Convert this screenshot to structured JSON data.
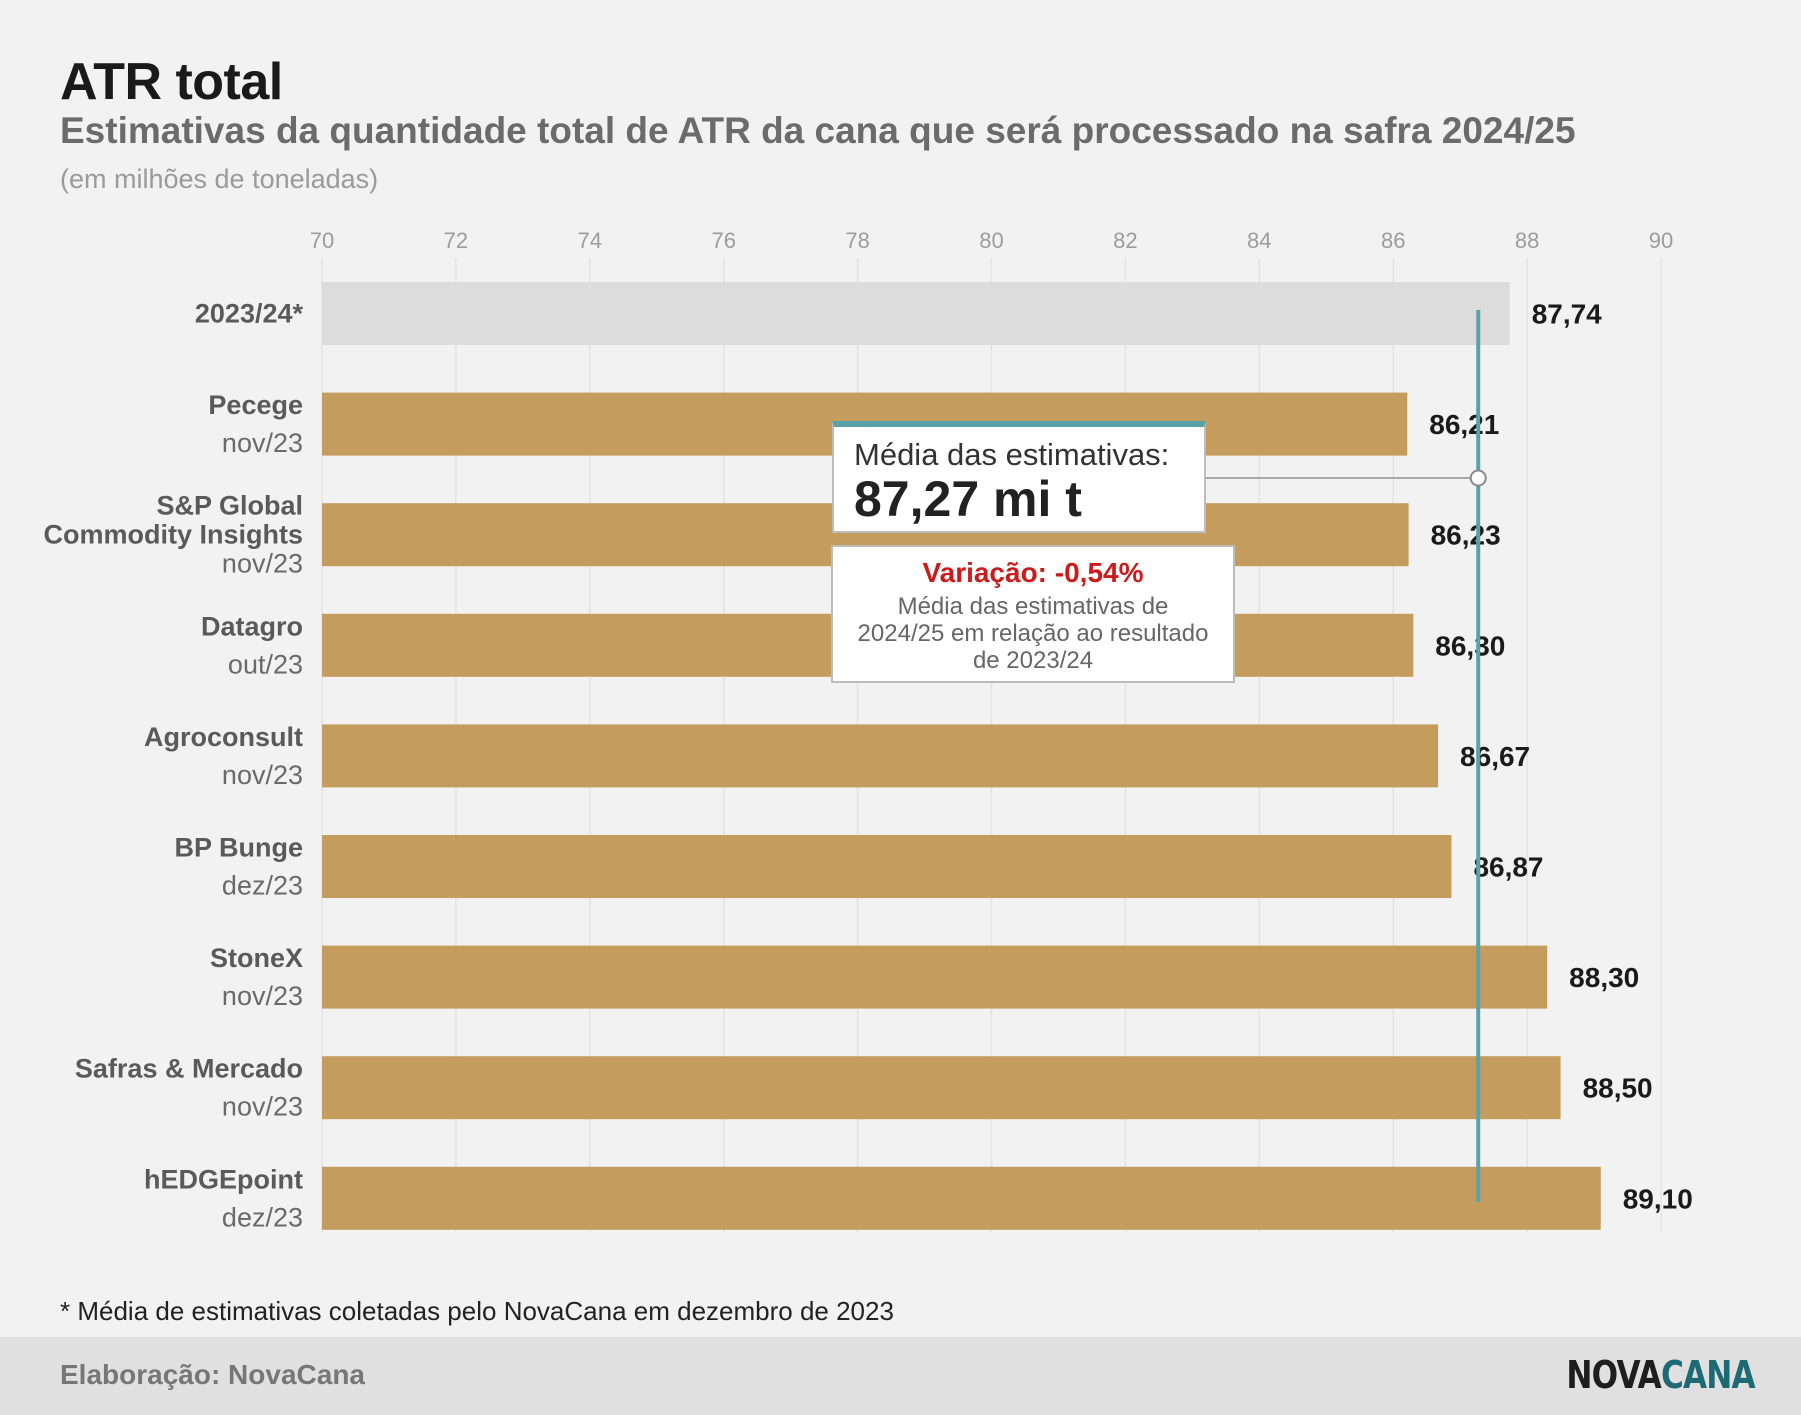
{
  "header": {
    "title": "ATR total",
    "subtitle": "Estimativas da quantidade total de ATR da cana que será processado na safra 2024/25",
    "unit_note": "(em milhões de toneladas)"
  },
  "annotation": {
    "average_label": "Média das estimativas:",
    "average_value_text": "87,27 mi t",
    "average_value": 87.27,
    "variation_title": "Variação: -0,54%",
    "variation_desc_lines": [
      "Média das estimativas de",
      "2024/25 em relação ao resultado",
      "de 2023/24"
    ]
  },
  "footnote": "* Média de estimativas coletadas pelo NovaCana em dezembro de 2023",
  "footer": {
    "credit": "Elaboração: NovaCana",
    "logo_part1": "NOVA",
    "logo_part2": "CANA"
  },
  "colors": {
    "bar": "#c49c5e",
    "reference_bar": "#dcdcdc",
    "average_line": "#5aa2aa",
    "variation": "#cc1b1b"
  },
  "chart_data": {
    "type": "bar",
    "orientation": "horizontal",
    "xlim": [
      70,
      90
    ],
    "ticks": [
      "70",
      "72",
      "74",
      "76",
      "78",
      "80",
      "82",
      "84",
      "86",
      "88",
      "90"
    ],
    "grid": true,
    "bars": [
      {
        "name": "2023/24*",
        "date": "",
        "value": 87.74,
        "label": "87,74",
        "reference": true
      },
      {
        "name": "Pecege",
        "date": "nov/23",
        "value": 86.21,
        "label": "86,21"
      },
      {
        "name": "S&P Global Commodity Insights",
        "date": "nov/23",
        "value": 86.23,
        "label": "86,23"
      },
      {
        "name": "Datagro",
        "date": "out/23",
        "value": 86.3,
        "label": "86,30"
      },
      {
        "name": "Agroconsult",
        "date": "nov/23",
        "value": 86.67,
        "label": "86,67"
      },
      {
        "name": "BP Bunge",
        "date": "dez/23",
        "value": 86.87,
        "label": "86,87"
      },
      {
        "name": "StoneX",
        "date": "nov/23",
        "value": 88.3,
        "label": "88,30"
      },
      {
        "name": "Safras & Mercado",
        "date": "nov/23",
        "value": 88.5,
        "label": "88,50"
      },
      {
        "name": "hEDGEpoint",
        "date": "dez/23",
        "value": 89.1,
        "label": "89,10"
      }
    ],
    "average_line": 87.27
  }
}
